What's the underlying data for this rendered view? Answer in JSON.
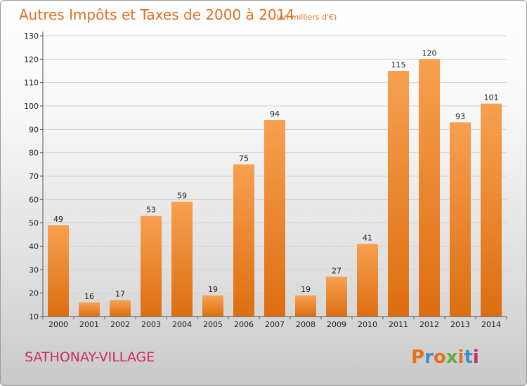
{
  "chart_data": {
    "type": "bar",
    "title": "Autres Impôts et Taxes de 2000 à 2014",
    "subtitle": "(en milliers d'€)",
    "categories": [
      "2000",
      "2001",
      "2002",
      "2003",
      "2004",
      "2005",
      "2006",
      "2007",
      "2008",
      "2009",
      "2010",
      "2011",
      "2012",
      "2013",
      "2014"
    ],
    "values": [
      49,
      16,
      17,
      53,
      59,
      19,
      75,
      94,
      19,
      27,
      41,
      115,
      120,
      93,
      101
    ],
    "ylim": [
      10,
      130
    ],
    "yticks": [
      10,
      20,
      30,
      40,
      50,
      60,
      70,
      80,
      90,
      100,
      110,
      120,
      130
    ],
    "xlabel": "",
    "ylabel": "",
    "grid": true,
    "bar_color": "#f08a2c"
  },
  "footer": {
    "place": "SATHONAY-VILLAGE",
    "brand": "Proxiti"
  },
  "colors": {
    "title": "#e07020",
    "place": "#cc2a6a",
    "brand_letters": [
      "#e8701a",
      "#3a8fd0",
      "#e8701a",
      "#5ab040",
      "#e8701a",
      "#3a8fd0",
      "#cc2a6a"
    ]
  }
}
